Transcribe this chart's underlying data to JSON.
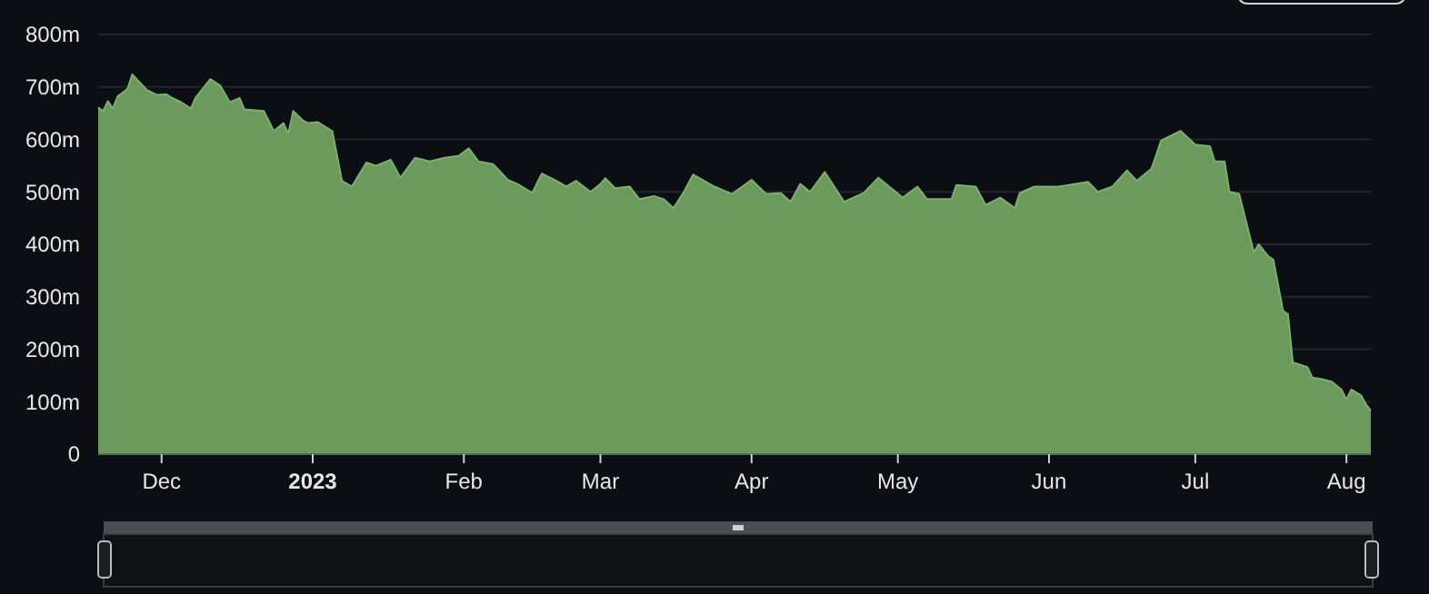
{
  "chart_data": {
    "type": "area",
    "xlim": [
      "2022-11-18",
      "2023-08-06"
    ],
    "xticks": [
      {
        "value": "2022-12-01",
        "label": "Dec"
      },
      {
        "value": "2023-01-01",
        "label": "2023"
      },
      {
        "value": "2023-02-01",
        "label": "Feb"
      },
      {
        "value": "2023-03-01",
        "label": "Mar"
      },
      {
        "value": "2023-04-01",
        "label": "Apr"
      },
      {
        "value": "2023-05-01",
        "label": "May"
      },
      {
        "value": "2023-06-01",
        "label": "Jun"
      },
      {
        "value": "2023-07-01",
        "label": "Jul"
      },
      {
        "value": "2023-08-01",
        "label": "Aug"
      }
    ],
    "ylim": [
      0,
      800
    ],
    "yticks": [
      0,
      {
        "value": 100,
        "label": "100m"
      },
      {
        "value": 200,
        "label": "200m"
      },
      {
        "value": 300,
        "label": "300m"
      },
      {
        "value": 400,
        "label": "400m"
      },
      {
        "value": 500,
        "label": "500m"
      },
      {
        "value": 600,
        "label": "600m"
      },
      {
        "value": 700,
        "label": "700m"
      },
      {
        "value": 800,
        "label": "800m"
      }
    ],
    "grid": "y",
    "x": [
      "2022-11-18",
      "2022-11-19",
      "2022-11-20",
      "2022-11-21",
      "2022-11-22",
      "2022-11-24",
      "2022-11-25",
      "2022-11-28",
      "2022-11-30",
      "2022-12-02",
      "2022-12-03",
      "2022-12-05",
      "2022-12-07",
      "2022-12-08",
      "2022-12-11",
      "2022-12-13",
      "2022-12-15",
      "2022-12-17",
      "2022-12-18",
      "2022-12-22",
      "2022-12-24",
      "2022-12-26",
      "2022-12-27",
      "2022-12-28",
      "2022-12-30",
      "2022-12-31",
      "2023-01-02",
      "2023-01-05",
      "2023-01-07",
      "2023-01-09",
      "2023-01-12",
      "2023-01-14",
      "2023-01-17",
      "2023-01-19",
      "2023-01-22",
      "2023-01-25",
      "2023-01-28",
      "2023-01-31",
      "2023-02-02",
      "2023-02-04",
      "2023-02-07",
      "2023-02-10",
      "2023-02-12",
      "2023-02-15",
      "2023-02-17",
      "2023-02-20",
      "2023-02-22",
      "2023-02-24",
      "2023-02-27",
      "2023-03-01",
      "2023-03-02",
      "2023-03-04",
      "2023-03-07",
      "2023-03-09",
      "2023-03-12",
      "2023-03-14",
      "2023-03-16",
      "2023-03-18",
      "2023-03-20",
      "2023-03-24",
      "2023-03-28",
      "2023-04-01",
      "2023-04-04",
      "2023-04-07",
      "2023-04-09",
      "2023-04-11",
      "2023-04-13",
      "2023-04-16",
      "2023-04-20",
      "2023-04-24",
      "2023-04-27",
      "2023-05-02",
      "2023-05-05",
      "2023-05-07",
      "2023-05-12",
      "2023-05-13",
      "2023-05-17",
      "2023-05-19",
      "2023-05-22",
      "2023-05-25",
      "2023-05-26",
      "2023-05-29",
      "2023-06-03",
      "2023-06-09",
      "2023-06-11",
      "2023-06-14",
      "2023-06-17",
      "2023-06-19",
      "2023-06-22",
      "2023-06-24",
      "2023-06-28",
      "2023-07-01",
      "2023-07-04",
      "2023-07-05",
      "2023-07-07",
      "2023-07-08",
      "2023-07-10",
      "2023-07-13",
      "2023-07-14",
      "2023-07-16",
      "2023-07-17",
      "2023-07-19",
      "2023-07-20",
      "2023-07-21",
      "2023-07-24",
      "2023-07-25",
      "2023-07-27",
      "2023-07-29",
      "2023-07-31",
      "2023-08-01",
      "2023-08-02",
      "2023-08-04",
      "2023-08-05",
      "2023-08-06"
    ],
    "series": [
      {
        "color": "#6b9a5c",
        "values": [
          661,
          654,
          673,
          659,
          682,
          696,
          724,
          694,
          685,
          686,
          680,
          671,
          659,
          680,
          715,
          703,
          671,
          679,
          657,
          654,
          616,
          631,
          611,
          654,
          636,
          631,
          633,
          616,
          521,
          510,
          556,
          550,
          561,
          527,
          565,
          558,
          565,
          569,
          583,
          558,
          553,
          523,
          515,
          498,
          535,
          521,
          510,
          521,
          500,
          515,
          526,
          507,
          510,
          486,
          492,
          486,
          469,
          498,
          533,
          512,
          496,
          523,
          496,
          498,
          481,
          515,
          500,
          538,
          481,
          498,
          527,
          489,
          510,
          486,
          486,
          513,
          510,
          475,
          489,
          469,
          498,
          510,
          510,
          519,
          500,
          510,
          541,
          521,
          544,
          598,
          616,
          590,
          587,
          558,
          558,
          500,
          496,
          385,
          400,
          377,
          371,
          273,
          267,
          175,
          166,
          146,
          143,
          138,
          123,
          104,
          123,
          112,
          95,
          83
        ]
      }
    ]
  }
}
